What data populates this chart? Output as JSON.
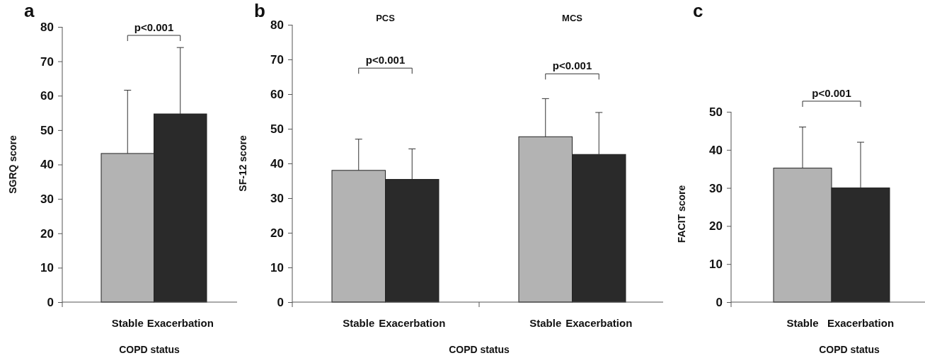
{
  "chart_data": [
    {
      "type": "bar",
      "title": "a",
      "xlabel": "COPD status",
      "ylabel": "SGRQ score",
      "categories": [
        "Stable",
        "Exacerbation"
      ],
      "values": [
        43.2,
        54.7
      ],
      "colors": [
        "#b3b3b3",
        "#2a2a2a"
      ],
      "errors": [
        [
          43.2,
          61.6
        ],
        [
          54.7,
          74
        ]
      ],
      "ylim": [
        0,
        80
      ],
      "yticks": [
        0,
        10,
        20,
        30,
        40,
        50,
        60,
        70,
        80
      ],
      "annotations": [
        "p<0.001"
      ]
    },
    {
      "type": "bar",
      "title": "b",
      "subtitle": "PCS",
      "xlabel": "COPD status",
      "ylabel": "SF-12 score",
      "categories": [
        "Stable",
        "Exacerbation"
      ],
      "values": [
        38,
        35.4
      ],
      "colors": [
        "#b3b3b3",
        "#2a2a2a"
      ],
      "errors": [
        [
          38,
          47
        ],
        [
          35.4,
          44.2
        ]
      ],
      "ylim": [
        0,
        80
      ],
      "yticks": [
        0,
        10,
        20,
        30,
        40,
        50,
        60,
        70,
        80
      ],
      "annotations": [
        "p<0.001"
      ]
    },
    {
      "type": "bar",
      "subtitle": "MCS",
      "categories": [
        "Stable",
        "Exacerbation"
      ],
      "values": [
        47.7,
        42.6
      ],
      "colors": [
        "#b3b3b3",
        "#2a2a2a"
      ],
      "errors": [
        [
          47.7,
          58.7
        ],
        [
          42.6,
          54.7
        ]
      ],
      "ylim": [
        0,
        80
      ],
      "tick_labels": "x",
      "annotations": [
        "p<0.001"
      ]
    },
    {
      "type": "bar",
      "title": "c",
      "xlabel": "COPD status",
      "ylabel": "FACIT score",
      "categories": [
        "Stable",
        "Exacerbation"
      ],
      "values": [
        35.2,
        30
      ],
      "colors": [
        "#b3b3b3",
        "#2a2a2a"
      ],
      "errors": [
        [
          35.2,
          46
        ],
        [
          30,
          42
        ]
      ],
      "ylim": [
        0,
        50
      ],
      "yticks": [
        0,
        10,
        20,
        30,
        40,
        50
      ],
      "annotations": [
        "p<0.001"
      ]
    }
  ]
}
